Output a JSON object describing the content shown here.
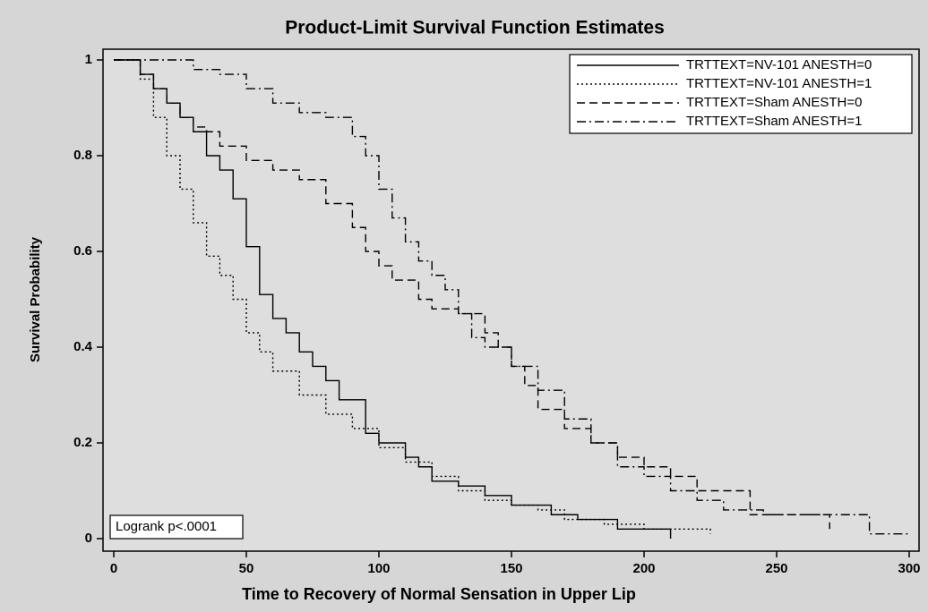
{
  "chart_data": {
    "type": "step",
    "title": "Product-Limit Survival Function Estimates",
    "x_label": "Time to Recovery of Normal Sensation in Upper Lip",
    "y_label": "Survival Probability",
    "annotation": "Logrank p<.0001",
    "xlim": [
      0,
      300
    ],
    "xticks": [
      0,
      50,
      100,
      150,
      200,
      250,
      300
    ],
    "ylim": [
      0,
      1
    ],
    "yticks": [
      0,
      0.2,
      0.4,
      0.6,
      0.8,
      1
    ],
    "legend": "top-right",
    "series": [
      {
        "name": "TRTTEXT=NV-101 ANESTH=0",
        "color": "#000000",
        "style": "solid",
        "x": [
          0,
          10,
          15,
          20,
          25,
          30,
          35,
          40,
          45,
          50,
          55,
          60,
          65,
          70,
          75,
          80,
          85,
          95,
          100,
          110,
          115,
          120,
          130,
          140,
          150,
          165,
          175,
          190,
          210
        ],
        "values": [
          1,
          0.97,
          0.94,
          0.91,
          0.88,
          0.85,
          0.8,
          0.77,
          0.71,
          0.61,
          0.51,
          0.46,
          0.43,
          0.39,
          0.36,
          0.33,
          0.29,
          0.22,
          0.2,
          0.17,
          0.15,
          0.12,
          0.11,
          0.09,
          0.07,
          0.05,
          0.04,
          0.02,
          0
        ]
      },
      {
        "name": "TRTTEXT=NV-101 ANESTH=1",
        "color": "#000000",
        "style": "dotted",
        "x": [
          0,
          10,
          15,
          20,
          25,
          30,
          35,
          40,
          45,
          50,
          55,
          60,
          70,
          80,
          90,
          100,
          110,
          120,
          130,
          140,
          150,
          160,
          170,
          185,
          200,
          225
        ],
        "values": [
          1,
          0.96,
          0.88,
          0.8,
          0.73,
          0.66,
          0.59,
          0.55,
          0.5,
          0.43,
          0.39,
          0.35,
          0.3,
          0.26,
          0.23,
          0.19,
          0.16,
          0.13,
          0.1,
          0.08,
          0.07,
          0.06,
          0.04,
          0.03,
          0.02,
          0.01
        ]
      },
      {
        "name": "TRTTEXT=Sham ANESTH=0",
        "color": "#000000",
        "style": "dashed",
        "x": [
          0,
          10,
          15,
          20,
          25,
          30,
          35,
          40,
          50,
          60,
          70,
          80,
          90,
          95,
          100,
          105,
          115,
          120,
          130,
          140,
          145,
          150,
          155,
          160,
          170,
          180,
          190,
          200,
          210,
          220,
          240,
          270
        ],
        "values": [
          1,
          0.97,
          0.94,
          0.91,
          0.88,
          0.86,
          0.85,
          0.82,
          0.79,
          0.77,
          0.75,
          0.7,
          0.65,
          0.6,
          0.57,
          0.54,
          0.5,
          0.48,
          0.47,
          0.43,
          0.4,
          0.36,
          0.32,
          0.27,
          0.23,
          0.2,
          0.17,
          0.15,
          0.13,
          0.1,
          0.05,
          0.02
        ]
      },
      {
        "name": "TRTTEXT=Sham ANESTH=1",
        "color": "#000000",
        "style": "dashdot",
        "x": [
          0,
          30,
          40,
          50,
          60,
          70,
          80,
          90,
          95,
          100,
          105,
          110,
          115,
          120,
          125,
          130,
          135,
          140,
          150,
          160,
          170,
          180,
          190,
          200,
          210,
          220,
          230,
          245,
          285,
          300
        ],
        "values": [
          1,
          0.98,
          0.97,
          0.94,
          0.91,
          0.89,
          0.88,
          0.84,
          0.8,
          0.73,
          0.67,
          0.62,
          0.58,
          0.55,
          0.52,
          0.47,
          0.42,
          0.4,
          0.36,
          0.31,
          0.25,
          0.2,
          0.15,
          0.13,
          0.1,
          0.08,
          0.06,
          0.05,
          0.01,
          0.01
        ]
      }
    ]
  }
}
